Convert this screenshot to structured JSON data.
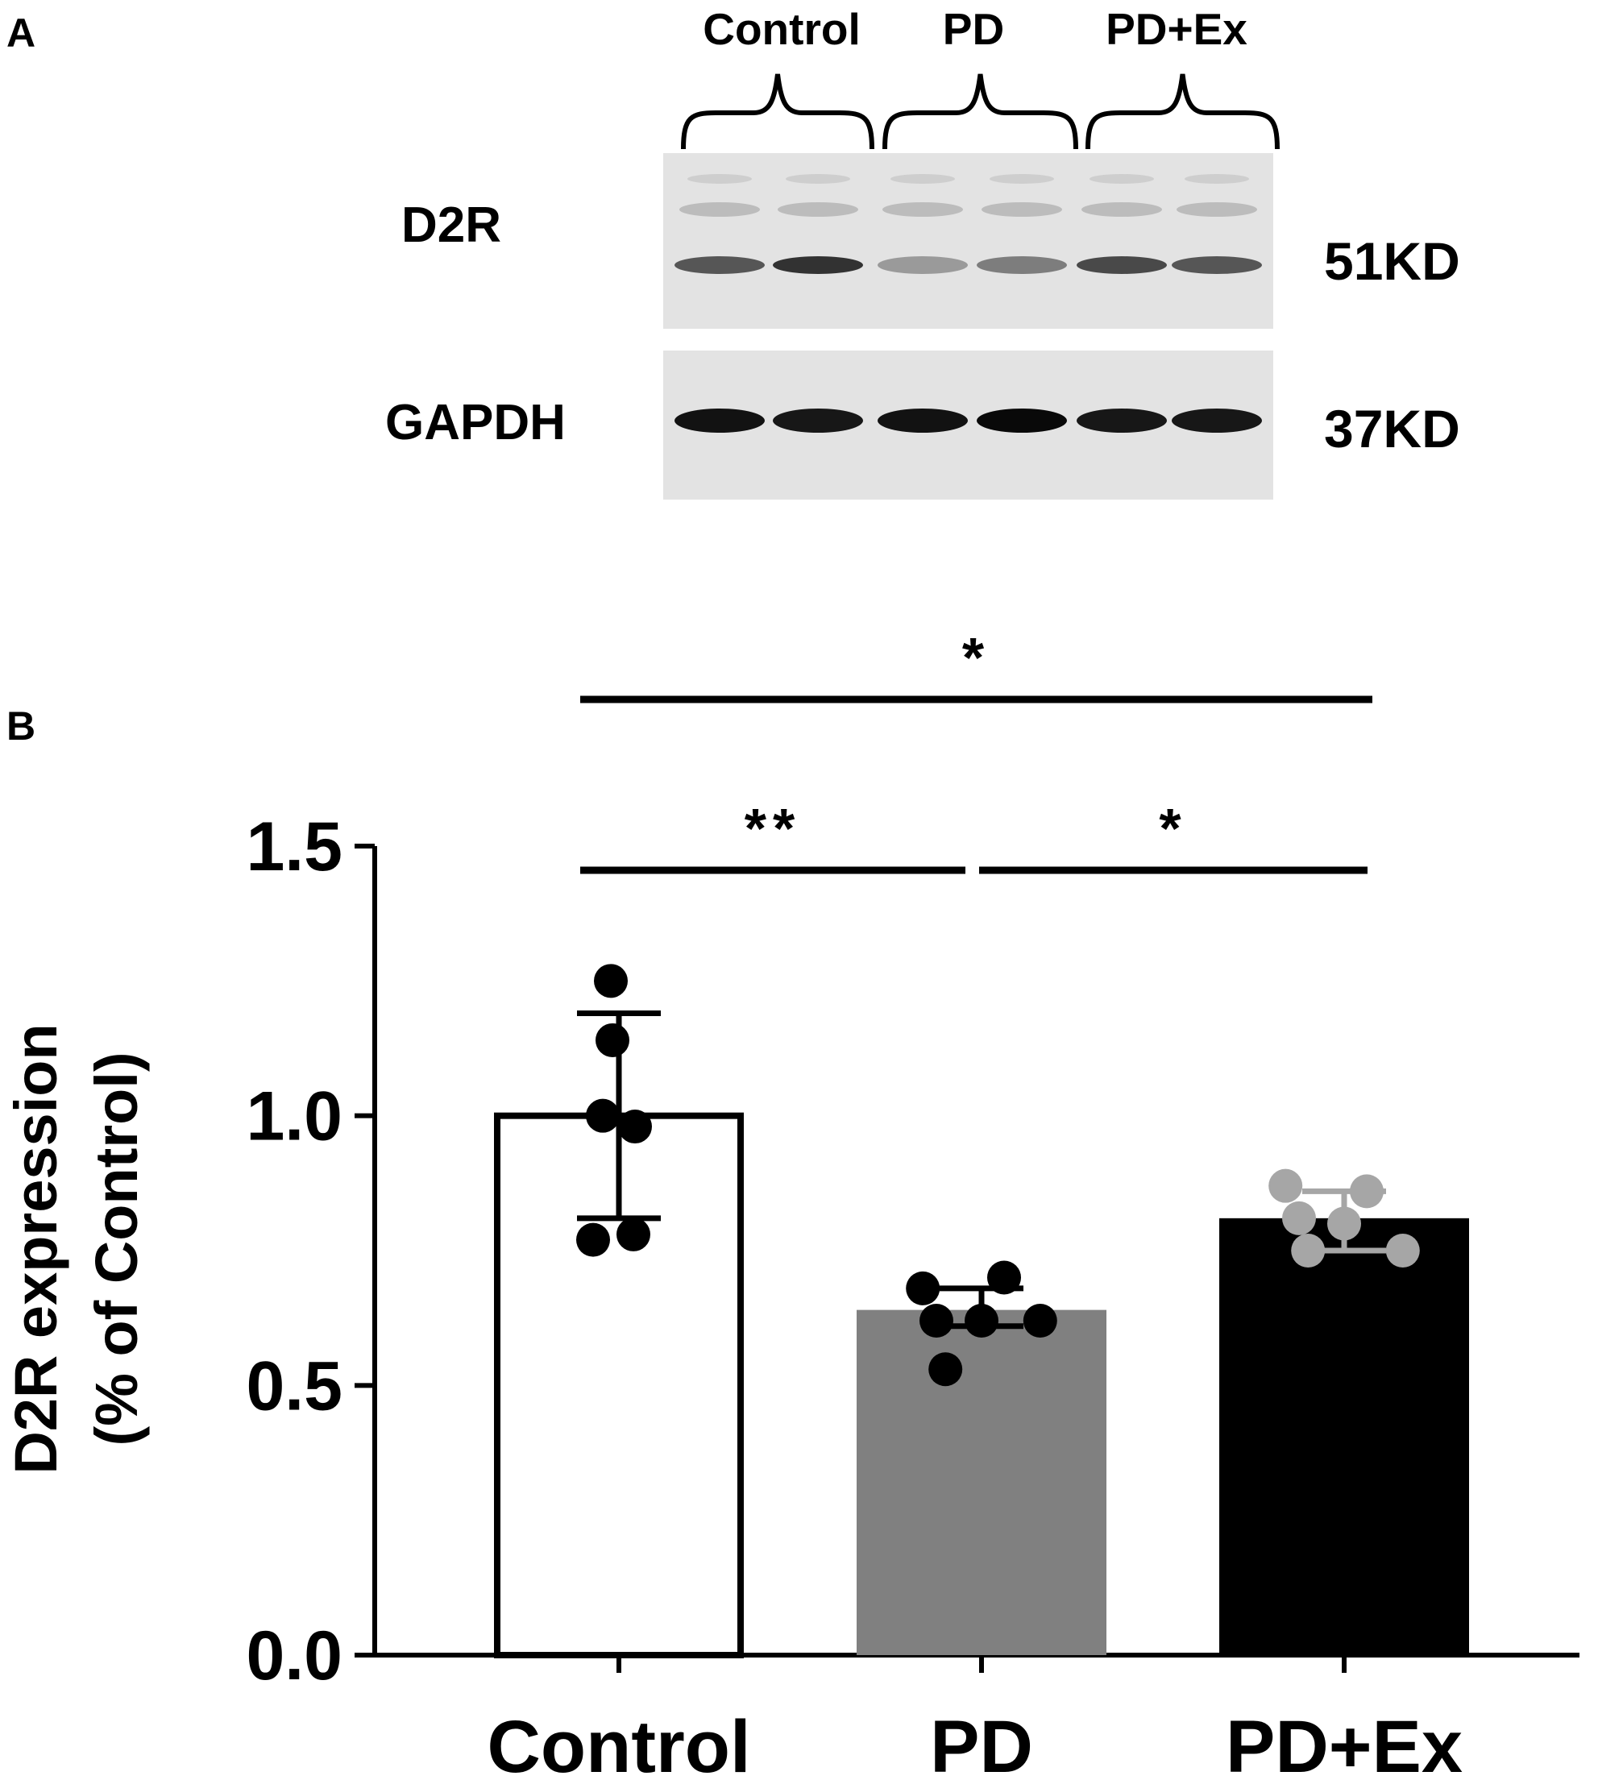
{
  "panels": {
    "a": {
      "letter": "A"
    },
    "b": {
      "letter": "B"
    }
  },
  "blot": {
    "groups": [
      "Control",
      "PD",
      "PD+Ex"
    ],
    "rows": [
      {
        "protein": "D2R",
        "size": "51KD",
        "band_intensity": [
          0.62,
          0.78,
          0.32,
          0.45,
          0.68,
          0.62
        ]
      },
      {
        "protein": "GAPDH",
        "size": "37KD",
        "band_intensity": [
          0.92,
          0.9,
          0.92,
          0.96,
          0.9,
          0.9
        ]
      }
    ]
  },
  "chart_data": {
    "type": "bar",
    "categories": [
      "Control",
      "PD",
      "PD+Ex"
    ],
    "values": [
      1.0,
      0.64,
      0.81
    ],
    "error": [
      {
        "low": 0.81,
        "high": 1.19
      },
      {
        "low": 0.61,
        "high": 0.68
      },
      {
        "low": 0.75,
        "high": 0.86
      }
    ],
    "points": [
      [
        1.25,
        1.14,
        1.0,
        0.98,
        0.77,
        0.78
      ],
      [
        0.68,
        0.7,
        0.62,
        0.62,
        0.62,
        0.53
      ],
      [
        0.87,
        0.86,
        0.81,
        0.8,
        0.75,
        0.75
      ]
    ],
    "bar_colors": [
      "#ffffff",
      "#808080",
      "#000000"
    ],
    "point_colors": [
      "#000000",
      "#000000",
      "#a6a6a6"
    ],
    "ylabel_lines": [
      "D2R expression",
      "(% of Control)"
    ],
    "ylim": [
      0,
      1.5
    ],
    "yticks": [
      "0.0",
      "0.5",
      "1.0",
      "1.5"
    ],
    "significance": [
      {
        "from": 0,
        "to": 2,
        "label": "*"
      },
      {
        "from": 0,
        "to": 1,
        "label": "**"
      },
      {
        "from": 1,
        "to": 2,
        "label": "*"
      }
    ]
  }
}
